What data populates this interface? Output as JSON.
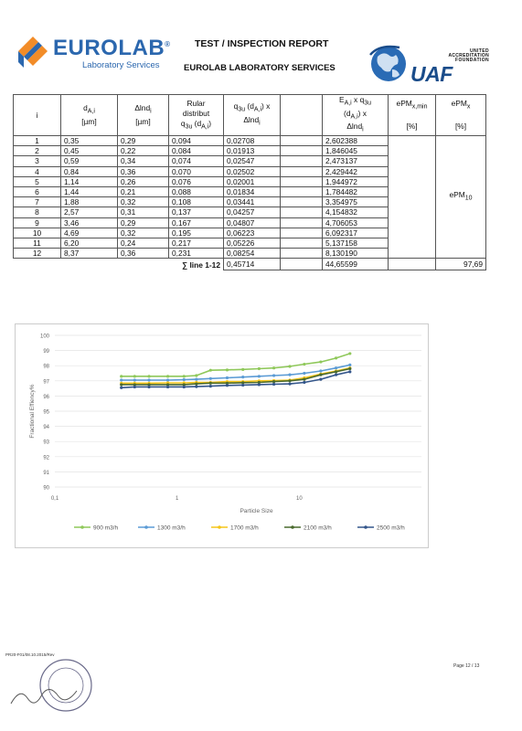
{
  "header": {
    "logo_word": "EUROLAB",
    "logo_reg": "®",
    "logo_sub": "Laboratory Services",
    "report_title": "TEST / INSPECTION REPORT",
    "report_subtitle": "EUROLAB LABORATORY SERVICES",
    "uaf_united": "UNITED",
    "uaf_accreditation": "ACCREDITATION",
    "uaf_foundation": "FOUNDATION",
    "uaf_logo_text": "UAF"
  },
  "table": {
    "headers": {
      "i": "i",
      "d": [
        "d",
        "A,i",
        "[µm]"
      ],
      "dlnd": [
        "Δlnd",
        "i",
        "[µm]"
      ],
      "rular": [
        "Rular",
        "distribut",
        "q",
        "3u",
        " (d",
        "A,i",
        ")"
      ],
      "q3u_over": [
        "q",
        "3u",
        " (d",
        "A,i",
        ") x",
        "Δlnd",
        "i"
      ],
      "ea": [
        "E",
        "A,i",
        " x q",
        "3u",
        "(d",
        "A,i",
        ") x",
        "Δlnd",
        "i"
      ],
      "epm_min": [
        "ePM",
        "x,min",
        "[%]"
      ],
      "epm_x": [
        "ePM",
        "x",
        "[%]"
      ]
    },
    "rows": [
      {
        "i": "1",
        "d": "0,35",
        "dlnd": "0,29",
        "q3u": "0,094",
        "qdl": "0,02708",
        "ea": "2,602388"
      },
      {
        "i": "2",
        "d": "0,45",
        "dlnd": "0,22",
        "q3u": "0,084",
        "qdl": "0,01913",
        "ea": "1,846045"
      },
      {
        "i": "3",
        "d": "0,59",
        "dlnd": "0,34",
        "q3u": "0,074",
        "qdl": "0,02547",
        "ea": "2,473137"
      },
      {
        "i": "4",
        "d": "0,84",
        "dlnd": "0,36",
        "q3u": "0,070",
        "qdl": "0,02502",
        "ea": "2,429442"
      },
      {
        "i": "5",
        "d": "1,14",
        "dlnd": "0,26",
        "q3u": "0,076",
        "qdl": "0,02001",
        "ea": "1,944972"
      },
      {
        "i": "6",
        "d": "1,44",
        "dlnd": "0,21",
        "q3u": "0,088",
        "qdl": "0,01834",
        "ea": "1,784482"
      },
      {
        "i": "7",
        "d": "1,88",
        "dlnd": "0,32",
        "q3u": "0,108",
        "qdl": "0,03441",
        "ea": "3,354975"
      },
      {
        "i": "8",
        "d": "2,57",
        "dlnd": "0,31",
        "q3u": "0,137",
        "qdl": "0,04257",
        "ea": "4,154832"
      },
      {
        "i": "9",
        "d": "3,46",
        "dlnd": "0,29",
        "q3u": "0,167",
        "qdl": "0,04807",
        "ea": "4,706053"
      },
      {
        "i": "10",
        "d": "4,69",
        "dlnd": "0,32",
        "q3u": "0,195",
        "qdl": "0,06223",
        "ea": "6,092317"
      },
      {
        "i": "11",
        "d": "6,20",
        "dlnd": "0,24",
        "q3u": "0,217",
        "qdl": "0,05226",
        "ea": "5,137158"
      },
      {
        "i": "12",
        "d": "8,37",
        "dlnd": "0,36",
        "q3u": "0,231",
        "qdl": "0,08254",
        "ea": "8,130190"
      }
    ],
    "epm10_label": [
      "ePM",
      "10"
    ],
    "sum_label": "∑ line 1-12",
    "sum_qdl": "0,45714",
    "sum_ea": "44,65599",
    "sum_epm": "97,69"
  },
  "chart_data": {
    "type": "line",
    "ylabel": "Fractional Effiency%",
    "xlabel": "Particle Size",
    "x_scale": "log",
    "xlim": [
      0.1,
      100
    ],
    "x_ticks": [
      "0,1",
      "1",
      "10"
    ],
    "x_tick_values": [
      0.1,
      1,
      10
    ],
    "ylim": [
      90,
      100
    ],
    "y_ticks": [
      "90",
      "91",
      "92",
      "93",
      "94",
      "95",
      "96",
      "97",
      "98",
      "99",
      "100"
    ],
    "grid": true,
    "legend_position": "bottom",
    "x": [
      0.35,
      0.45,
      0.59,
      0.84,
      1.14,
      1.44,
      1.88,
      2.57,
      3.46,
      4.69,
      6.2,
      8.37,
      11.0,
      15.0,
      20.0,
      26.0
    ],
    "series": [
      {
        "name": "900 m3/h",
        "color": "#8fc85a",
        "values": [
          97.3,
          97.3,
          97.3,
          97.3,
          97.3,
          97.35,
          97.7,
          97.72,
          97.75,
          97.8,
          97.85,
          97.95,
          98.1,
          98.25,
          98.5,
          98.8
        ]
      },
      {
        "name": "1300 m3/h",
        "color": "#5b9bd5",
        "values": [
          97.05,
          97.05,
          97.05,
          97.05,
          97.08,
          97.1,
          97.15,
          97.2,
          97.25,
          97.3,
          97.35,
          97.4,
          97.5,
          97.65,
          97.85,
          98.05
        ]
      },
      {
        "name": "1700 m3/h",
        "color": "#f5c518",
        "values": [
          96.85,
          96.85,
          96.85,
          96.87,
          96.87,
          96.9,
          96.9,
          96.95,
          96.95,
          97.0,
          97.02,
          97.05,
          97.2,
          97.45,
          97.65,
          97.85
        ]
      },
      {
        "name": "2100 m3/h",
        "color": "#4a6a2e",
        "values": [
          96.75,
          96.75,
          96.75,
          96.75,
          96.75,
          96.8,
          96.85,
          96.85,
          96.88,
          96.9,
          96.95,
          97.0,
          97.1,
          97.4,
          97.6,
          97.8
        ]
      },
      {
        "name": "2500 m3/h",
        "color": "#34568b",
        "values": [
          96.55,
          96.6,
          96.6,
          96.6,
          96.6,
          96.62,
          96.65,
          96.7,
          96.72,
          96.75,
          96.78,
          96.8,
          96.9,
          97.1,
          97.4,
          97.6
        ]
      }
    ]
  },
  "footer": {
    "form_code": "PR20-F01/08.10.2015/Rev",
    "page_number": "Page 12 / 13"
  }
}
